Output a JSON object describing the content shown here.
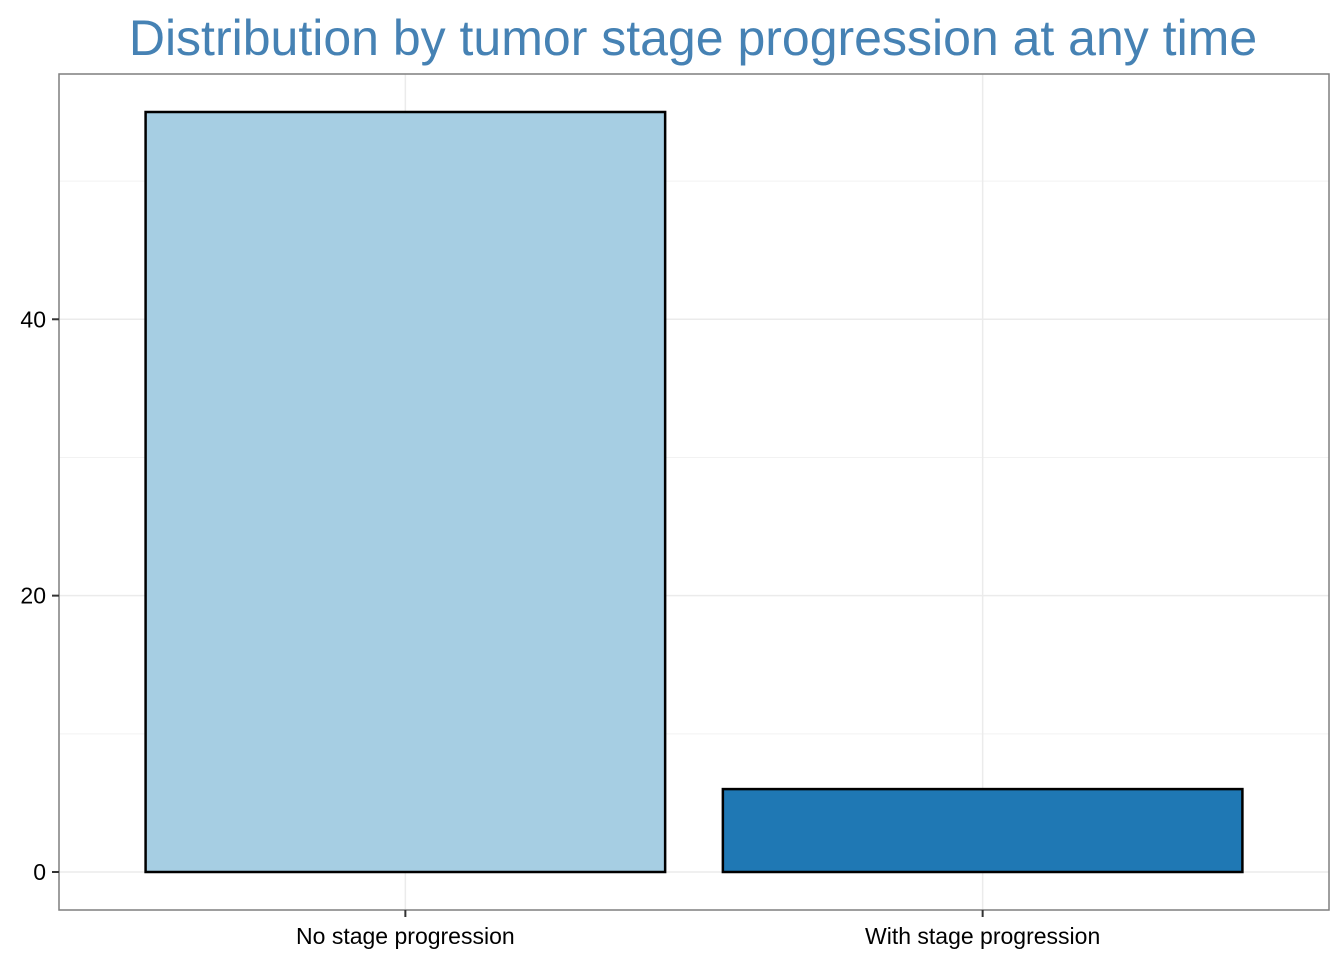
{
  "chart_data": {
    "type": "bar",
    "title": "Distribution by tumor stage progression at any time",
    "xlabel": "",
    "ylabel": "",
    "categories": [
      "No stage progression",
      "With stage progression"
    ],
    "values": [
      55,
      6
    ],
    "bar_colors": [
      "#a6cee3",
      "#1f78b4"
    ],
    "title_color": "#4682b4",
    "ylim": [
      -2.75,
      57.75
    ],
    "yticks": [
      0,
      20,
      40
    ],
    "grid": true,
    "legend": "none"
  }
}
